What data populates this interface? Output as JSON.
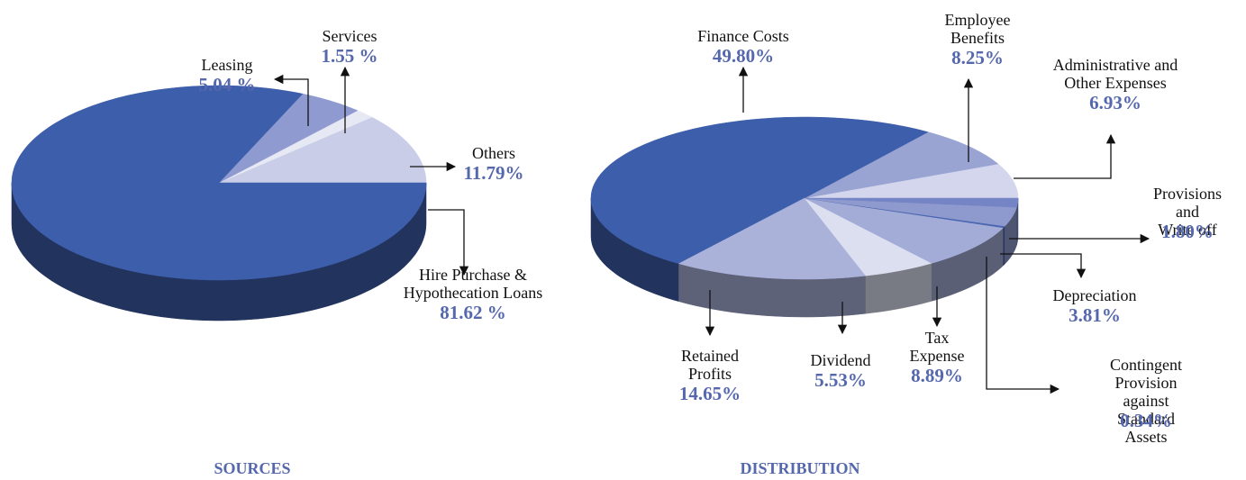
{
  "chart_data": [
    {
      "type": "pie",
      "title": "SOURCES",
      "categories": [
        "Others",
        "Services",
        "Leasing",
        "Hire Purchase &\nHypothecation Loans"
      ],
      "values": [
        11.79,
        1.55,
        5.04,
        81.62
      ],
      "value_labels": [
        "11.79%",
        "1.55 %",
        "5.04 %",
        "81.62 %"
      ],
      "colors": [
        "#c9cde8",
        "#e6e8f4",
        "#8f9bd0",
        "#3d5eab"
      ]
    },
    {
      "type": "pie",
      "title": "DISTRIBUTION",
      "categories": [
        "Administrative and\nOther Expenses",
        "Employee\nBenefits",
        "Finance Costs",
        "Retained\nProfits",
        "Dividend",
        "Tax\nExpense",
        "Contingent\nProvision against\nStandard Assets",
        "Depreciation",
        "Provisions and\nWrite off"
      ],
      "values": [
        6.93,
        8.25,
        49.8,
        14.65,
        5.53,
        8.89,
        0.34,
        3.81,
        1.8
      ],
      "value_labels": [
        "6.93%",
        "8.25%",
        "49.80%",
        "14.65%",
        "5.53%",
        "8.89%",
        "0.34%",
        "3.81%",
        "1.80%"
      ],
      "colors": [
        "#d3d6ec",
        "#9aa4d3",
        "#3d5eab",
        "#aab2da",
        "#dcdff0",
        "#a3acd7",
        "#4a66b0",
        "#8e9ace",
        "#7584c4"
      ]
    }
  ]
}
